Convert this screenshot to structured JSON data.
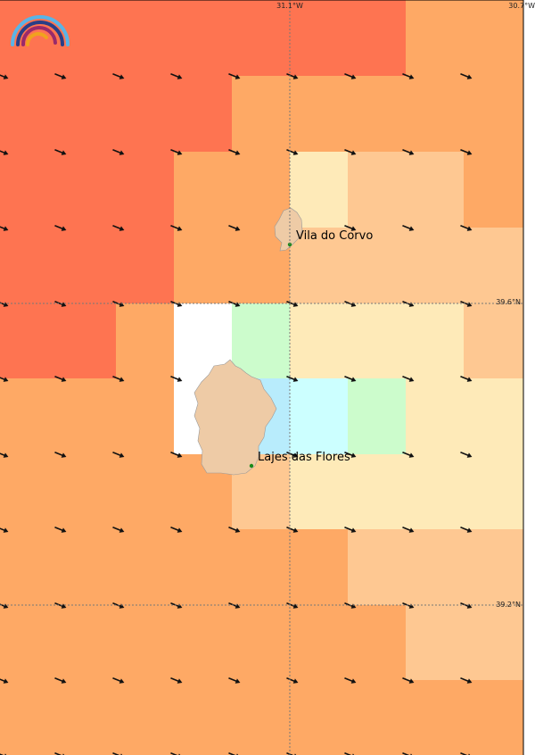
{
  "map": {
    "lon_labels": [
      "31.1°W",
      "30.7°W"
    ],
    "lat_labels": [
      "39.6°N",
      "39.2°N"
    ],
    "places": [
      {
        "name": "Vila do Corvo"
      },
      {
        "name": "Lajes das Flores"
      }
    ]
  }
}
